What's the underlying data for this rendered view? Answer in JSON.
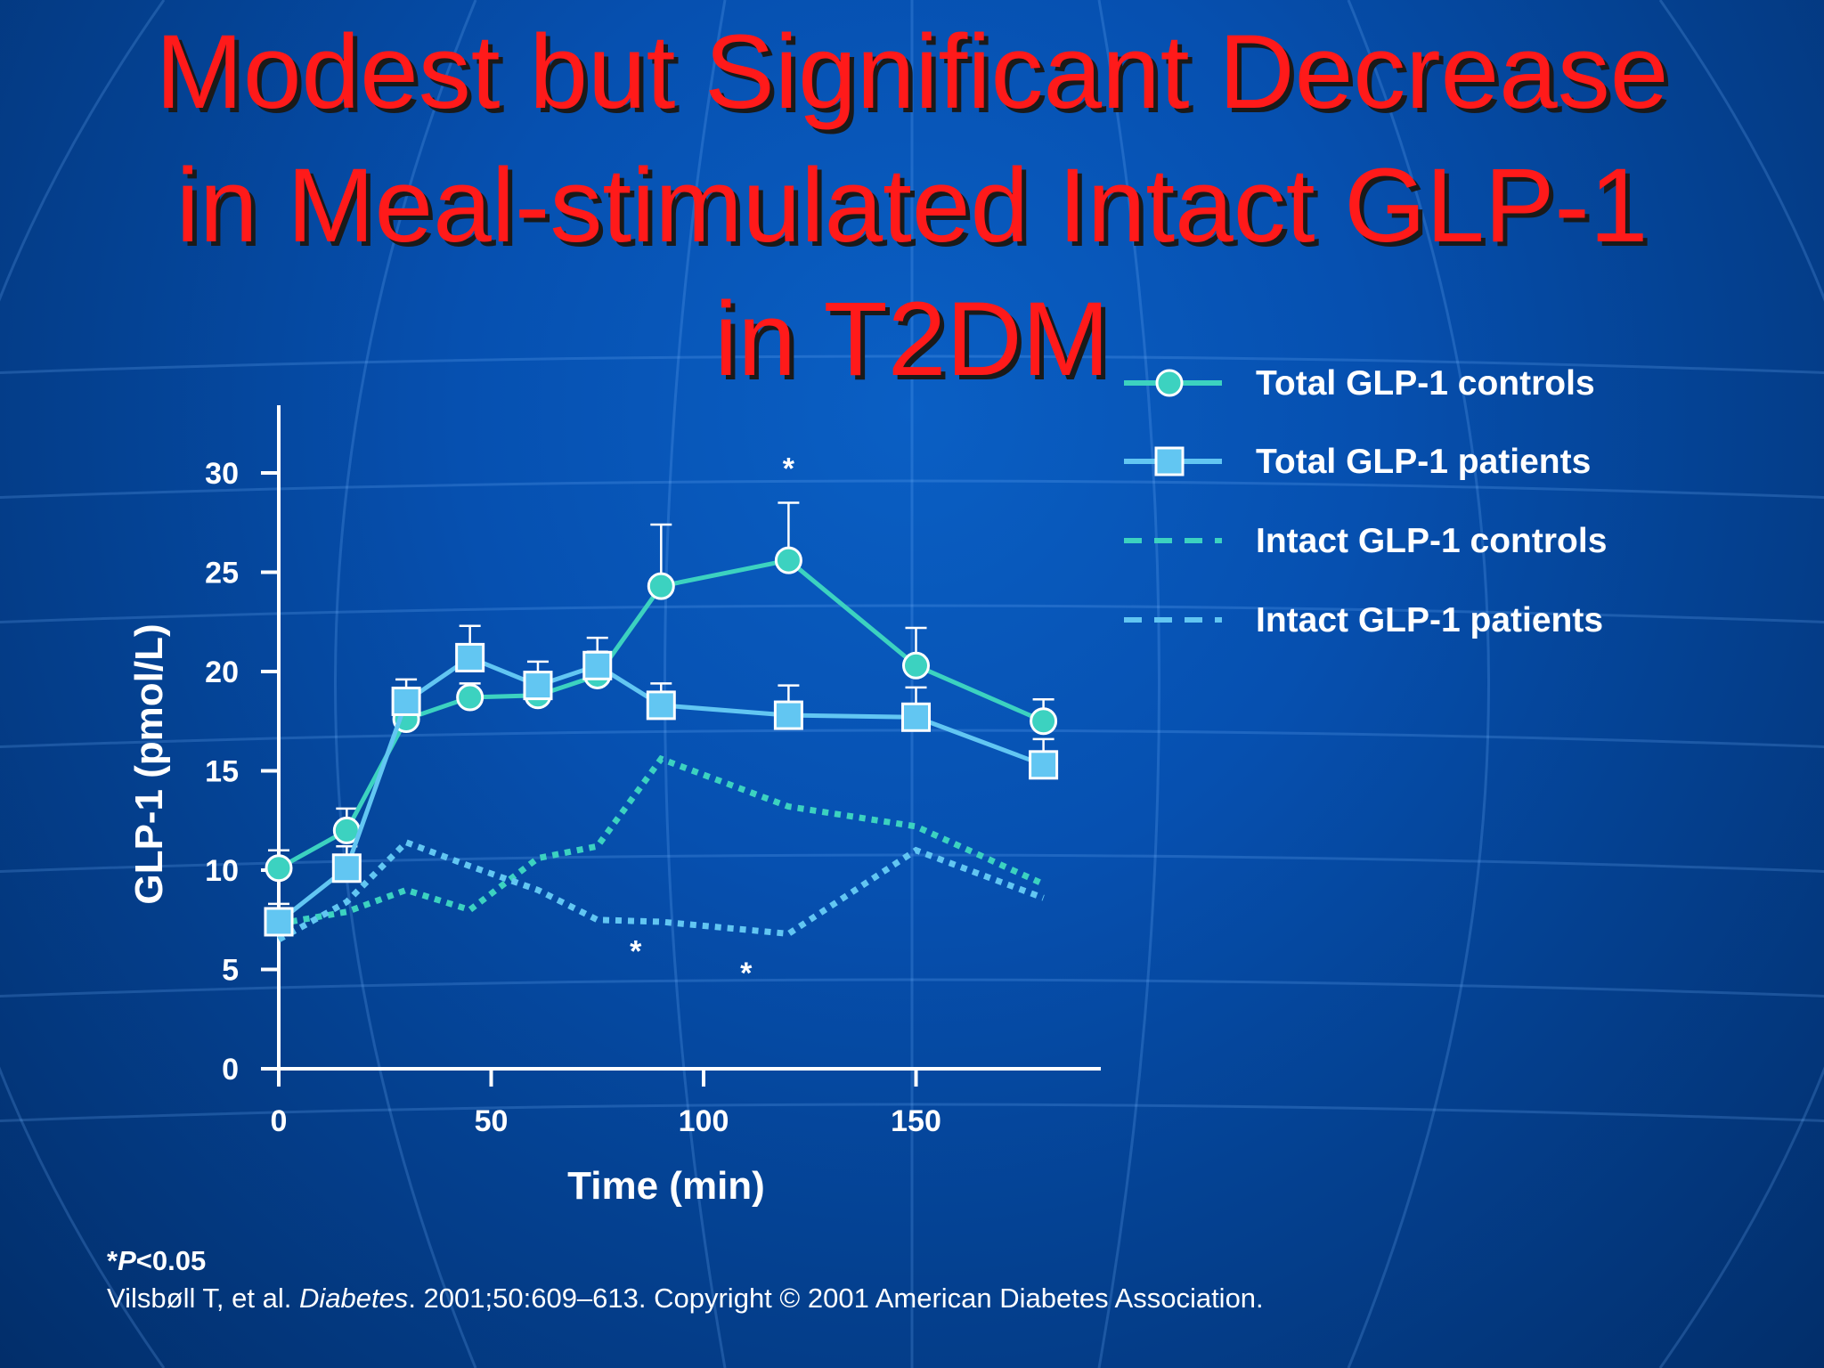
{
  "slide": {
    "title_lines": [
      "Modest but Significant Decrease",
      "in Meal-stimulated Intact GLP-1",
      "in T2DM"
    ],
    "pnote": {
      "star": "*",
      "p": "P",
      "rest": "<0.05"
    },
    "citation": {
      "authors": "Vilsbøll T, et al. ",
      "journal": "Diabetes",
      "rest": ". 2001;50:609–613. Copyright © 2001 American Diabetes Association."
    }
  },
  "colors": {
    "background": "#0552b3",
    "title": "#ff1a1a",
    "controls": "#3cd2c0",
    "patients": "#62c6f2",
    "axis": "#ffffff"
  },
  "chart_data": {
    "type": "line",
    "xlabel": "Time (min)",
    "ylabel": "GLP-1 (pmol/L)",
    "xlim": [
      0,
      190
    ],
    "ylim": [
      0,
      33
    ],
    "xticks": [
      0,
      50,
      100,
      150
    ],
    "yticks": [
      0,
      5,
      10,
      15,
      20,
      25,
      30
    ],
    "legend_position": "top-right",
    "series": [
      {
        "name": "Total GLP-1 controls",
        "style": "solid",
        "marker": "circle",
        "color": "#3cd2c0",
        "x": [
          0,
          16,
          30,
          45,
          61,
          75,
          90,
          120,
          150,
          180
        ],
        "y": [
          10.1,
          12.0,
          17.6,
          18.7,
          18.8,
          19.8,
          24.3,
          25.6,
          20.3,
          17.5
        ],
        "err": [
          0.9,
          1.1,
          1.3,
          0.7,
          1.1,
          1.2,
          3.1,
          2.9,
          1.9,
          1.1
        ]
      },
      {
        "name": "Total GLP-1 patients",
        "style": "solid",
        "marker": "square",
        "color": "#62c6f2",
        "x": [
          0,
          16,
          30,
          45,
          61,
          75,
          90,
          120,
          150,
          180
        ],
        "y": [
          7.4,
          10.1,
          18.5,
          20.7,
          19.3,
          20.3,
          18.3,
          17.8,
          17.7,
          15.3
        ],
        "err": [
          0.9,
          1.1,
          1.1,
          1.6,
          1.2,
          1.4,
          1.1,
          1.5,
          1.5,
          1.3
        ]
      },
      {
        "name": "Intact GLP-1 controls",
        "style": "dashed",
        "marker": "none",
        "color": "#3cd2c0",
        "x": [
          0,
          16,
          30,
          45,
          61,
          75,
          90,
          120,
          150,
          180
        ],
        "y": [
          7.3,
          7.9,
          9.0,
          8.0,
          10.6,
          11.2,
          15.6,
          13.2,
          12.2,
          9.3
        ]
      },
      {
        "name": "Intact GLP-1 patients",
        "style": "dashed",
        "marker": "none",
        "color": "#62c6f2",
        "x": [
          0,
          16,
          30,
          45,
          61,
          75,
          90,
          120,
          150,
          180
        ],
        "y": [
          6.5,
          8.4,
          11.4,
          10.2,
          9.0,
          7.5,
          7.4,
          6.8,
          11.0,
          8.6
        ]
      }
    ],
    "annotations": [
      {
        "text": "*",
        "x": 120,
        "y": 29.7
      },
      {
        "text": "*",
        "x": 84,
        "y": 5.4
      },
      {
        "text": "*",
        "x": 110,
        "y": 4.3
      }
    ]
  }
}
